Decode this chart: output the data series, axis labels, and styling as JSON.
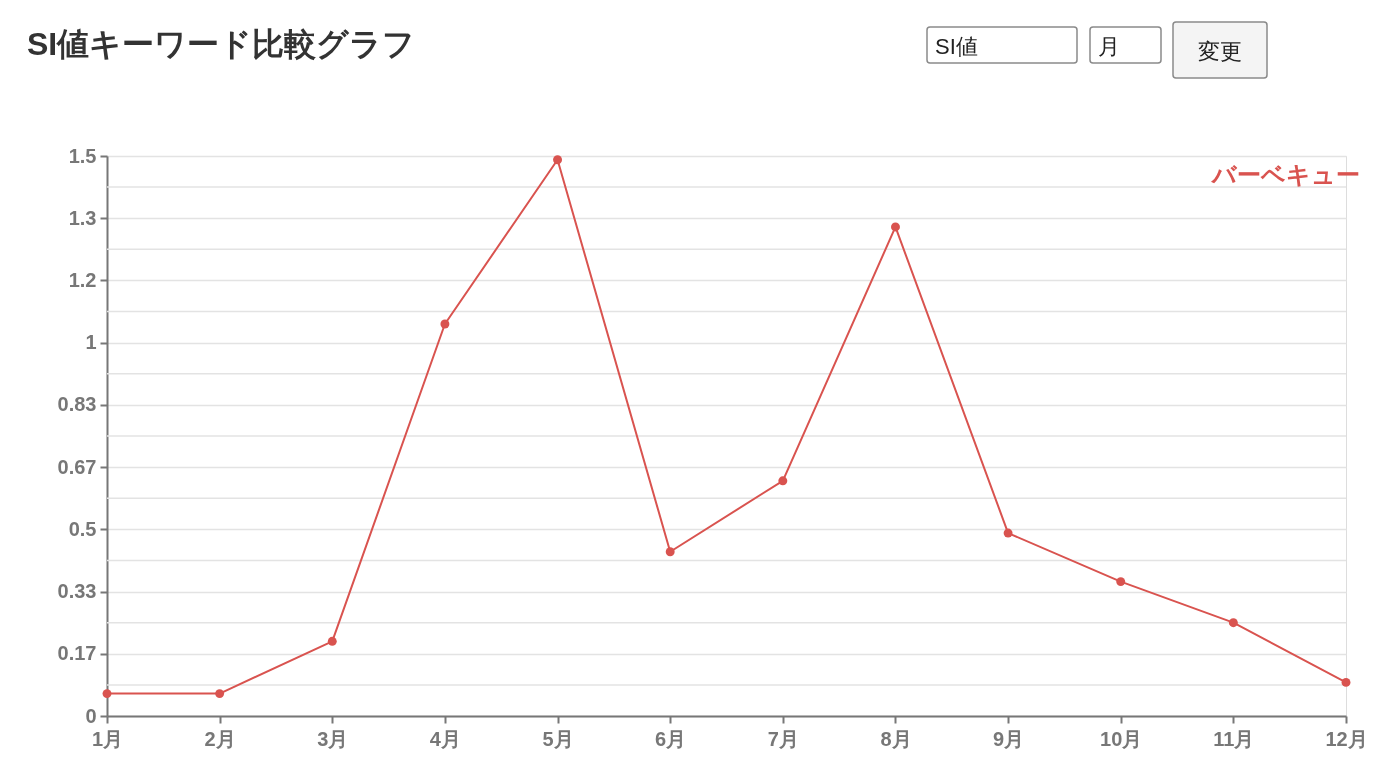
{
  "chart_data": {
    "type": "line",
    "title": "SI値キーワード比較グラフ",
    "annotations": [
      "SI値",
      "月",
      "変更"
    ],
    "categories": [
      "1月",
      "2月",
      "3月",
      "4月",
      "5月",
      "6月",
      "7月",
      "8月",
      "9月",
      "10月",
      "11月",
      "12月"
    ],
    "series": [
      {
        "name": "バーベキュー",
        "color": "#d9534f",
        "values": [
          0.06,
          0.06,
          0.2,
          1.05,
          1.49,
          0.44,
          0.63,
          1.31,
          0.49,
          0.36,
          0.25,
          0.09
        ]
      }
    ],
    "ylim": [
      0,
      1.5
    ],
    "yticks": [
      0,
      {
        "value": 0.0833,
        "label": null
      },
      {
        "value": 0.1667,
        "label": "0.17"
      },
      {
        "value": 0.25,
        "label": null
      },
      {
        "value": 0.3333,
        "label": "0.33"
      },
      {
        "value": 0.4167,
        "label": null
      },
      0.5,
      {
        "value": 0.5833,
        "label": null
      },
      {
        "value": 0.6667,
        "label": "0.67"
      },
      {
        "value": 0.75,
        "label": null
      },
      {
        "value": 0.8333,
        "label": "0.83"
      },
      {
        "value": 0.9167,
        "label": null
      },
      1,
      {
        "value": 1.0833,
        "label": null
      },
      {
        "value": 1.1667,
        "label": "1.2"
      },
      {
        "value": 1.25,
        "label": null
      },
      {
        "value": 1.3333,
        "label": "1.3"
      },
      {
        "value": 1.4167,
        "label": null
      },
      1.5
    ],
    "grid": "y",
    "legend": "top right",
    "marker": "circle",
    "line_style": "solid"
  }
}
